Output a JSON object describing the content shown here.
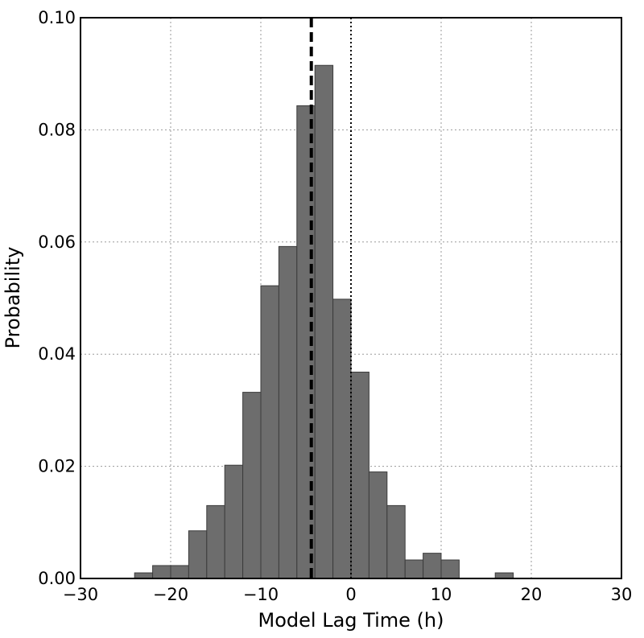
{
  "chart_data": {
    "type": "bar",
    "xlabel": "Model Lag Time (h)",
    "ylabel": "Probability",
    "xlim": [
      -30,
      30
    ],
    "ylim": [
      0,
      0.1
    ],
    "xticks": [
      "−30",
      "−20",
      "−10",
      "0",
      "10",
      "20",
      "30"
    ],
    "yticks": [
      "0.00",
      "0.02",
      "0.04",
      "0.06",
      "0.08",
      "0.10"
    ],
    "grid": true,
    "bin_width": 2,
    "bins": [
      {
        "x_start": -24,
        "value": 0.001
      },
      {
        "x_start": -22,
        "value": 0.0023
      },
      {
        "x_start": -20,
        "value": 0.0023
      },
      {
        "x_start": -18,
        "value": 0.0085
      },
      {
        "x_start": -16,
        "value": 0.013
      },
      {
        "x_start": -14,
        "value": 0.0202
      },
      {
        "x_start": -12,
        "value": 0.0332
      },
      {
        "x_start": -10,
        "value": 0.0522
      },
      {
        "x_start": -8,
        "value": 0.0592
      },
      {
        "x_start": -6,
        "value": 0.0843
      },
      {
        "x_start": -4,
        "value": 0.0915
      },
      {
        "x_start": -2,
        "value": 0.0498
      },
      {
        "x_start": 0,
        "value": 0.0368
      },
      {
        "x_start": 2,
        "value": 0.019
      },
      {
        "x_start": 4,
        "value": 0.013
      },
      {
        "x_start": 6,
        "value": 0.0033
      },
      {
        "x_start": 8,
        "value": 0.0045
      },
      {
        "x_start": 10,
        "value": 0.0033
      },
      {
        "x_start": 16,
        "value": 0.001
      }
    ],
    "vertical_lines": [
      {
        "x": -4.4,
        "style": "dashed"
      },
      {
        "x": 0,
        "style": "dotted"
      }
    ],
    "bar_color": "#6d6d6d",
    "bar_edge_color": "#3c3c3c"
  }
}
